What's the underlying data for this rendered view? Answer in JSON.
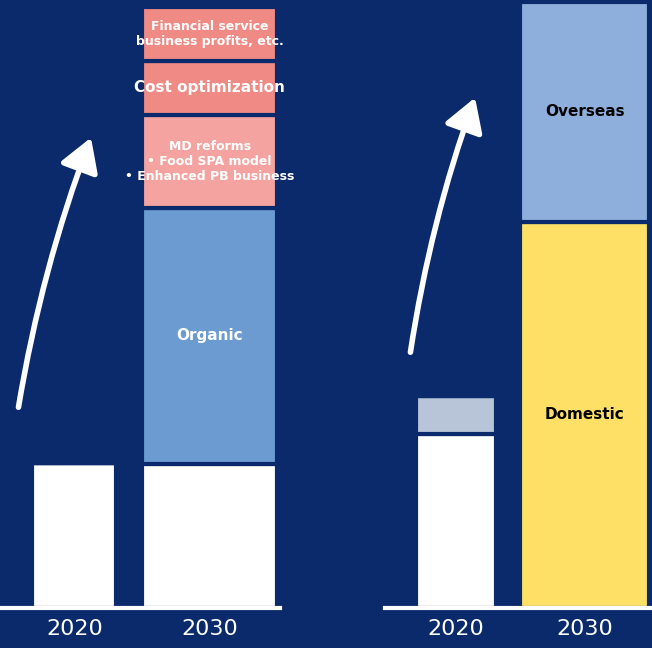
{
  "chart_data": [
    {
      "type": "bar",
      "stacked": true,
      "tick_labels": "x",
      "categories": [
        "2020",
        "2030"
      ],
      "ylim": [
        0,
        600
      ],
      "series": [
        {
          "name": null,
          "color": "#ffffff",
          "values": [
            143,
            142
          ]
        },
        {
          "name": "Organic",
          "color": "#6b9bd1",
          "values": [
            0,
            253
          ]
        },
        {
          "name": "MD reforms\n• Food SPA model\n• Enhanced PB business",
          "color": "#f4a3a0",
          "values": [
            0,
            92
          ]
        },
        {
          "name": "Cost optimization",
          "color": "#ef8a85",
          "values": [
            0,
            53
          ]
        },
        {
          "name": "Financial service\nbusiness profits, etc.",
          "color": "#ef8a85",
          "values": [
            0,
            53
          ]
        }
      ]
    },
    {
      "type": "bar",
      "stacked": true,
      "tick_labels": "x",
      "categories": [
        "2020",
        "2030"
      ],
      "ylim": [
        0,
        600
      ],
      "series": [
        {
          "name": null,
          "color": "#ffffff",
          "values": [
            172,
            0
          ]
        },
        {
          "name": null,
          "color": "#b8c4d8",
          "values": [
            37,
            0
          ]
        },
        {
          "name": "Domestic",
          "color": "#ffe066",
          "values": [
            0,
            381
          ]
        },
        {
          "name": "Overseas",
          "color": "#8eaedc",
          "values": [
            0,
            217
          ]
        }
      ]
    }
  ]
}
